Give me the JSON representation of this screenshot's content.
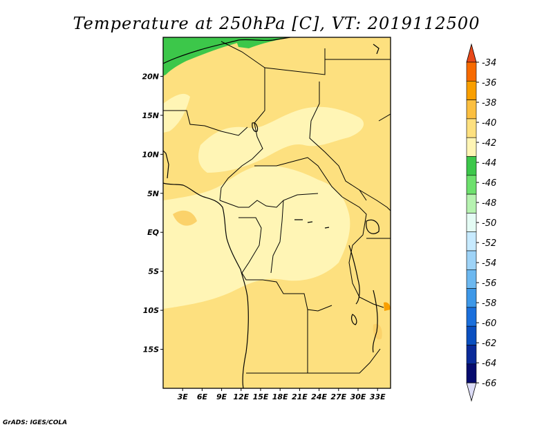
{
  "title": "Temperature at 250hPa [C], VT: 2019112500",
  "credit": "GrADS: IGES/COLA",
  "colors": {
    "land_base": "#fde07f",
    "warmer_patch": "#fbd26a",
    "cool_patch": "#fff5b5",
    "green_patch": "#3cc74a"
  },
  "map": {
    "lon_range": [
      0,
      35
    ],
    "lat_range": [
      -20,
      25
    ],
    "x_ticks": [
      "3E",
      "6E",
      "9E",
      "12E",
      "15E",
      "18E",
      "21E",
      "24E",
      "27E",
      "30E",
      "33E"
    ],
    "y_ticks": [
      "20N",
      "15N",
      "10N",
      "5N",
      "EQ",
      "5S",
      "10S",
      "15S"
    ]
  },
  "colorbar": {
    "labels": [
      "-34",
      "-36",
      "-38",
      "-40",
      "-42",
      "-44",
      "-46",
      "-48",
      "-50",
      "-52",
      "-54",
      "-56",
      "-58",
      "-60",
      "-62",
      "-64",
      "-66"
    ],
    "colors": [
      "#f04a00",
      "#f76a00",
      "#f99f00",
      "#fbbf40",
      "#fde07f",
      "#fff5b5",
      "#3cc74a",
      "#6de06d",
      "#b6f2b0",
      "#e4fbf4",
      "#c7eaff",
      "#9ed3f7",
      "#6cb8f0",
      "#3d98e8",
      "#1a6fdc",
      "#0a4fc0",
      "#0a2a99",
      "#060b6e"
    ],
    "top_triangle": "#e8481a",
    "bottom_triangle": "#dcdcf6"
  }
}
